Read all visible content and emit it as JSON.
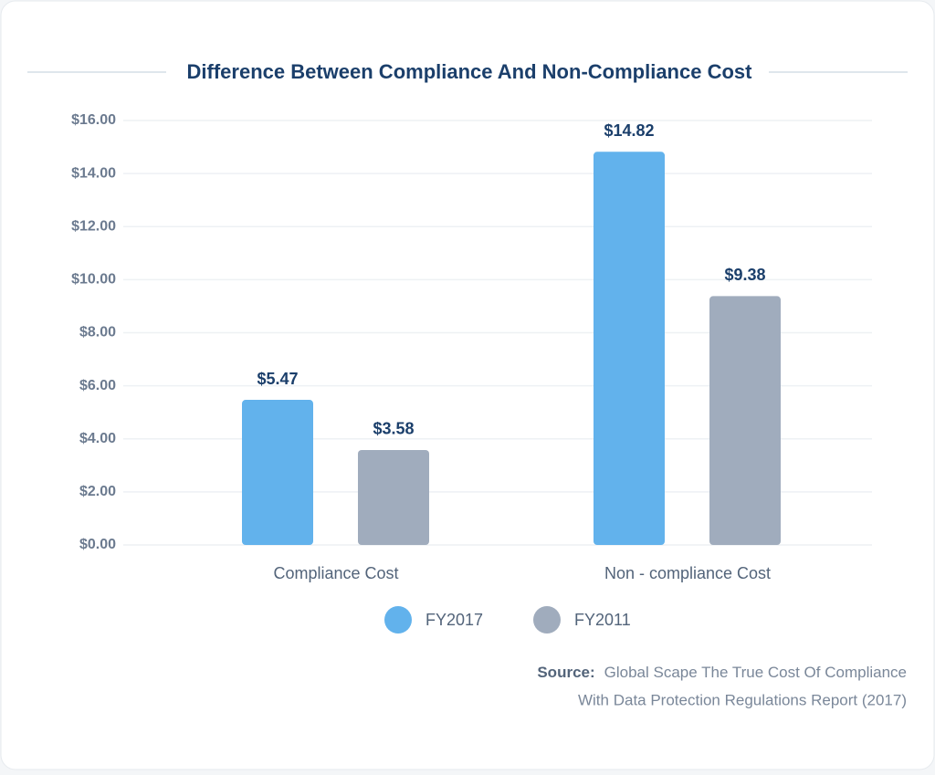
{
  "chart_data": {
    "type": "bar",
    "title": "Difference Between Compliance And Non-Compliance Cost",
    "categories": [
      "Compliance Cost",
      "Non - compliance Cost"
    ],
    "series": [
      {
        "name": "FY2017",
        "color": "#62b2ec",
        "values": [
          5.47,
          14.82
        ],
        "value_labels": [
          "$5.47",
          "$14.82"
        ]
      },
      {
        "name": "FY2011",
        "color": "#a0acbd",
        "values": [
          3.58,
          9.38
        ],
        "value_labels": [
          "$3.58",
          "$9.38"
        ]
      }
    ],
    "ylim": [
      0,
      16
    ],
    "yticks": [
      {
        "value": 0,
        "label": "$0.00"
      },
      {
        "value": 2,
        "label": "$2.00"
      },
      {
        "value": 4,
        "label": "$4.00"
      },
      {
        "value": 6,
        "label": "$6.00"
      },
      {
        "value": 8,
        "label": "$8.00"
      },
      {
        "value": 10,
        "label": "$10.00"
      },
      {
        "value": 12,
        "label": "$12.00"
      },
      {
        "value": 14,
        "label": "$14.00"
      },
      {
        "value": 16,
        "label": "$16.00"
      }
    ],
    "grid": true,
    "source_label": "Source:",
    "source": [
      "Global Scape The True Cost Of Compliance",
      "With Data Protection Regulations Report (2017)"
    ]
  }
}
